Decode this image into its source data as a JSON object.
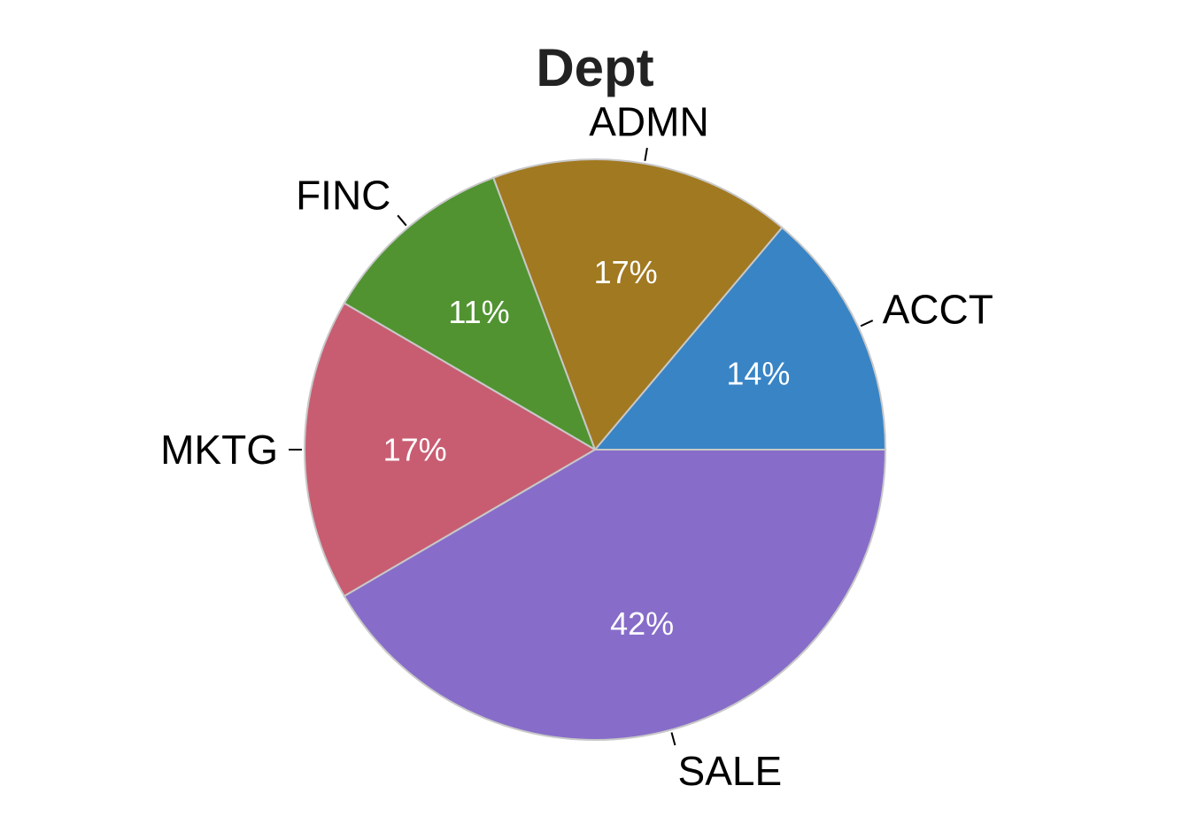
{
  "chart_data": {
    "type": "pie",
    "title": "Dept",
    "start_angle_deg": 0,
    "direction": "counterclockwise",
    "slices": [
      {
        "label": "ACCT",
        "value": 14,
        "percent_label": "14%",
        "color": "#3884C5"
      },
      {
        "label": "ADMN",
        "value": 17,
        "percent_label": "17%",
        "color": "#A17921"
      },
      {
        "label": "FINC",
        "value": 11,
        "percent_label": "11%",
        "color": "#519331"
      },
      {
        "label": "MKTG",
        "value": 17,
        "percent_label": "17%",
        "color": "#C85D72"
      },
      {
        "label": "SALE",
        "value": 42,
        "percent_label": "42%",
        "color": "#876DC9"
      }
    ],
    "slice_border_color": "#C8C8C8",
    "legend": "none"
  }
}
